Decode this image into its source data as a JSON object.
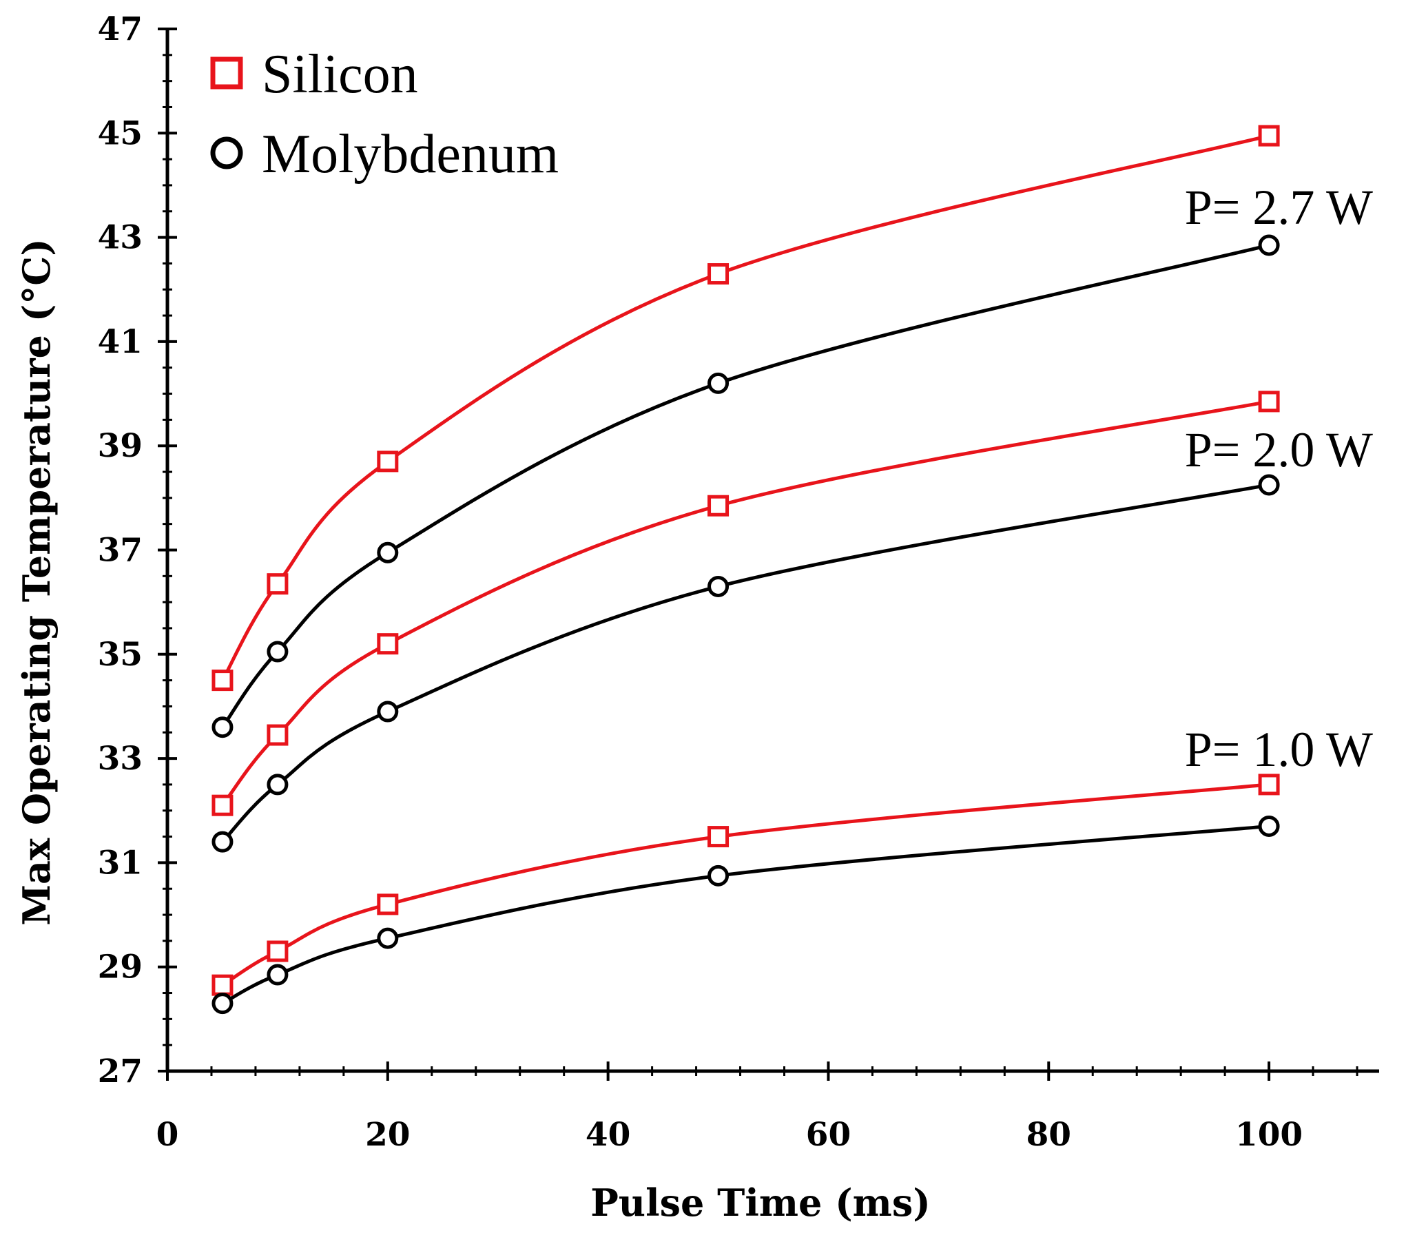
{
  "chart_data": {
    "type": "line",
    "title": "",
    "xlabel": "Pulse Time (ms)",
    "ylabel": "Max Operating Temperature (°C)",
    "xlim": [
      0,
      110
    ],
    "ylim": [
      27,
      47
    ],
    "xticks": [
      0,
      20,
      40,
      60,
      80,
      100
    ],
    "yticks": [
      27,
      29,
      31,
      33,
      35,
      37,
      39,
      41,
      43,
      45,
      47
    ],
    "x_minor_step": 4,
    "y_minor_step": 0.5,
    "grid": false,
    "legend": {
      "position": "top-left",
      "entries": [
        {
          "label": "Silicon",
          "marker": "square",
          "color": "#e8141b"
        },
        {
          "label": "Molybdenum",
          "marker": "circle",
          "color": "#000000"
        }
      ]
    },
    "series": [
      {
        "name": "Silicon",
        "power": "P= 2.7 W",
        "marker": "square",
        "color": "#e8141b",
        "x": [
          5,
          10,
          20,
          50,
          100
        ],
        "y": [
          34.5,
          36.35,
          38.7,
          42.3,
          44.95
        ]
      },
      {
        "name": "Molybdenum",
        "power": "P= 2.7 W",
        "marker": "circle",
        "color": "#000000",
        "x": [
          5,
          10,
          20,
          50,
          100
        ],
        "y": [
          33.6,
          35.05,
          36.95,
          40.2,
          42.85
        ]
      },
      {
        "name": "Silicon",
        "power": "P= 2.0 W",
        "marker": "square",
        "color": "#e8141b",
        "x": [
          5,
          10,
          20,
          50,
          100
        ],
        "y": [
          32.1,
          33.45,
          35.2,
          37.85,
          39.85
        ]
      },
      {
        "name": "Molybdenum",
        "power": "P= 2.0 W",
        "marker": "circle",
        "color": "#000000",
        "x": [
          5,
          10,
          20,
          50,
          100
        ],
        "y": [
          31.4,
          32.5,
          33.9,
          36.3,
          38.25
        ]
      },
      {
        "name": "Silicon",
        "power": "P= 1.0 W",
        "marker": "square",
        "color": "#e8141b",
        "x": [
          5,
          10,
          20,
          50,
          100
        ],
        "y": [
          28.65,
          29.3,
          30.2,
          31.5,
          32.5
        ]
      },
      {
        "name": "Molybdenum",
        "power": "P= 1.0 W",
        "marker": "circle",
        "color": "#000000",
        "x": [
          5,
          10,
          20,
          50,
          100
        ],
        "y": [
          28.3,
          28.85,
          29.55,
          30.75,
          31.7
        ]
      }
    ],
    "annotations": [
      {
        "text": "P= 2.7 W",
        "x": 100,
        "y": 43.6
      },
      {
        "text": "P= 2.0 W",
        "x": 100,
        "y": 38.95
      },
      {
        "text": "P= 1.0 W",
        "x": 100,
        "y": 33.2
      }
    ]
  }
}
